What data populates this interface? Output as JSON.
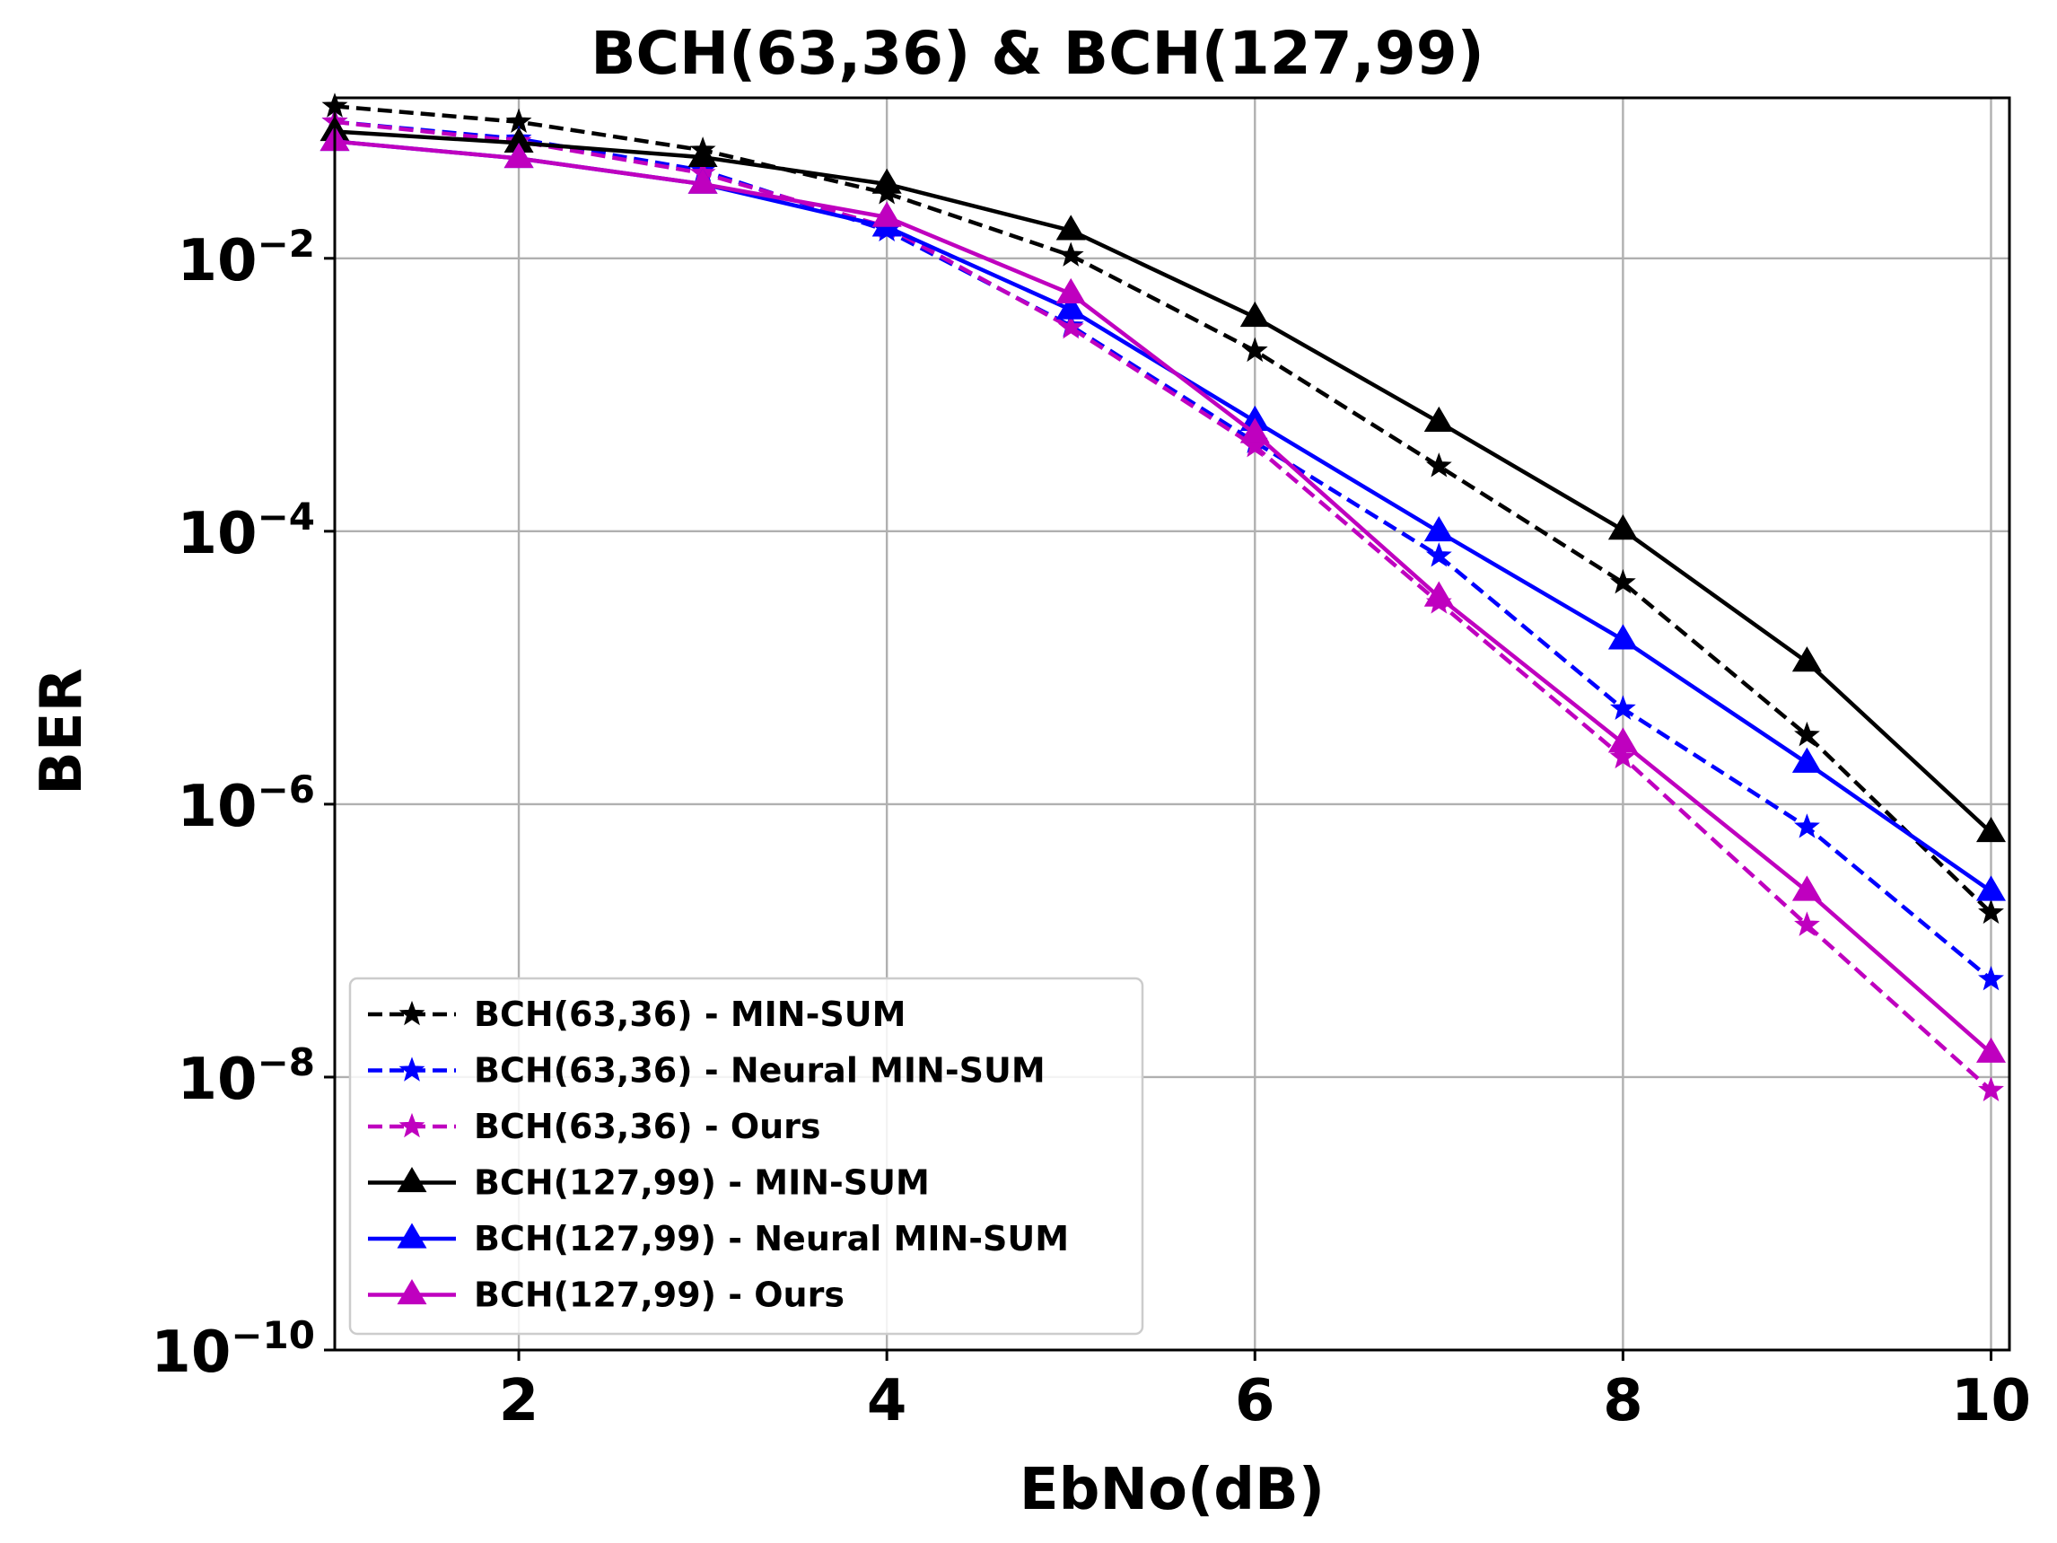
{
  "chart_data": {
    "type": "line",
    "title": "BCH(63,36) & BCH(127,99)",
    "xlabel": "EbNo(dB)",
    "ylabel": "BER",
    "x": [
      1,
      2,
      3,
      4,
      5,
      6,
      7,
      8,
      9,
      10
    ],
    "xlim": [
      1,
      10.1
    ],
    "ylim": [
      1e-10,
      0.15
    ],
    "yscale": "log",
    "xticks": [
      2,
      4,
      6,
      8,
      10
    ],
    "xtick_labels": [
      "2",
      "4",
      "6",
      "8",
      "10"
    ],
    "yticks": [
      {
        "value": 1e-10,
        "base": "10",
        "exp": "−10"
      },
      {
        "value": 1e-08,
        "base": "10",
        "exp": "−8"
      },
      {
        "value": 1e-06,
        "base": "10",
        "exp": "−6"
      },
      {
        "value": 0.0001,
        "base": "10",
        "exp": "−4"
      },
      {
        "value": 0.01,
        "base": "10",
        "exp": "−2"
      }
    ],
    "grid": true,
    "legend_position": "lower-left",
    "series": [
      {
        "name": "BCH(63,36) - MIN-SUM",
        "color": "#000000",
        "dash": true,
        "marker": "star",
        "values": [
          0.13,
          0.1,
          0.062,
          0.03,
          0.0105,
          0.0021,
          0.0003,
          4.2e-05,
          3.2e-06,
          1.6e-07
        ]
      },
      {
        "name": "BCH(63,36) - Neural MIN-SUM",
        "color": "#0000ff",
        "dash": true,
        "marker": "star",
        "values": [
          0.1,
          0.075,
          0.044,
          0.016,
          0.0032,
          0.00045,
          6.6e-05,
          5e-06,
          6.8e-07,
          5.2e-08
        ]
      },
      {
        "name": "BCH(63,36) - Ours",
        "color": "#bf00bf",
        "dash": true,
        "marker": "star",
        "values": [
          0.1,
          0.072,
          0.042,
          0.017,
          0.0031,
          0.00042,
          3e-05,
          2.2e-06,
          1.3e-07,
          8e-09
        ]
      },
      {
        "name": "BCH(127,99) - MIN-SUM",
        "color": "#000000",
        "dash": false,
        "marker": "triangle",
        "values": [
          0.085,
          0.07,
          0.055,
          0.035,
          0.016,
          0.0037,
          0.00063,
          0.000102,
          1.1e-05,
          6.2e-07
        ]
      },
      {
        "name": "BCH(127,99) - Neural MIN-SUM",
        "color": "#0000ff",
        "dash": false,
        "marker": "triangle",
        "values": [
          0.072,
          0.054,
          0.035,
          0.017,
          0.0042,
          0.00064,
          9.9e-05,
          1.6e-05,
          2e-06,
          2.3e-07
        ]
      },
      {
        "name": "BCH(127,99) - Ours",
        "color": "#bf00bf",
        "dash": false,
        "marker": "triangle",
        "values": [
          0.072,
          0.054,
          0.035,
          0.02,
          0.0055,
          0.00052,
          3.3e-05,
          2.8e-06,
          2.3e-07,
          1.5e-08
        ]
      }
    ]
  }
}
